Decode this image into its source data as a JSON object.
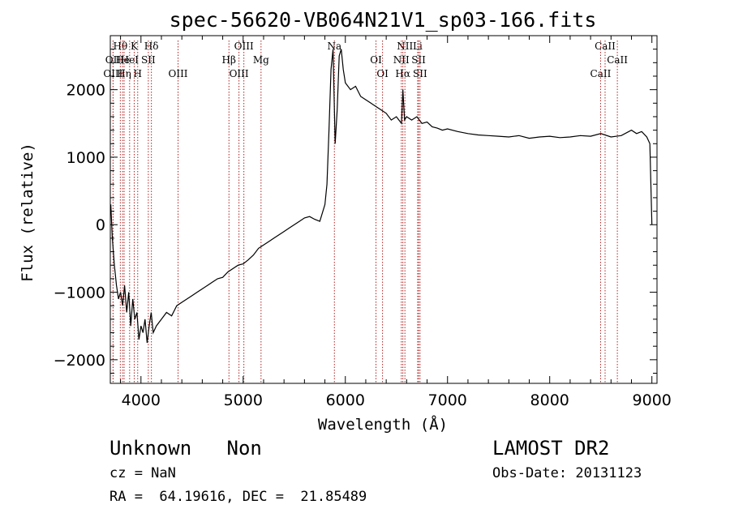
{
  "chart_data": {
    "type": "line",
    "title": "spec-56620-VB064N21V1_sp03-166.fits",
    "xlabel": "Wavelength (Å)",
    "ylabel": "Flux (relative)",
    "xlim": [
      3700,
      9050
    ],
    "ylim": [
      -2350,
      2800
    ],
    "xticks": [
      4000,
      5000,
      6000,
      7000,
      8000,
      9000
    ],
    "yticks": [
      -2000,
      -1000,
      0,
      1000,
      2000
    ],
    "grid": false,
    "line_color": "#000000",
    "marker_color": "#b22222",
    "series": [
      {
        "x": [
          3705,
          3720,
          3740,
          3760,
          3780,
          3800,
          3820,
          3840,
          3860,
          3880,
          3900,
          3920,
          3940,
          3960,
          3980,
          4000,
          4020,
          4040,
          4060,
          4080,
          4100,
          4120,
          4150,
          4200,
          4250,
          4300,
          4350,
          4400,
          4450,
          4500,
          4550,
          4600,
          4650,
          4700,
          4750,
          4800,
          4850,
          4900,
          4950,
          5000,
          5050,
          5100,
          5150,
          5200,
          5250,
          5300,
          5350,
          5400,
          5450,
          5500,
          5550,
          5600,
          5650,
          5700,
          5750,
          5800,
          5820,
          5840,
          5860,
          5880,
          5900,
          5920,
          5940,
          5960,
          5980,
          6000,
          6050,
          6100,
          6150,
          6200,
          6250,
          6300,
          6350,
          6400,
          6450,
          6500,
          6550,
          6563,
          6580,
          6600,
          6650,
          6700,
          6750,
          6800,
          6850,
          6900,
          6950,
          7000,
          7100,
          7200,
          7300,
          7400,
          7500,
          7600,
          7700,
          7800,
          7900,
          8000,
          8100,
          8200,
          8300,
          8400,
          8500,
          8600,
          8700,
          8800,
          8850,
          8900,
          8950,
          8980,
          9000
        ],
        "y": [
          300,
          -200,
          -600,
          -900,
          -1100,
          -1000,
          -1200,
          -900,
          -1300,
          -1000,
          -1500,
          -1100,
          -1400,
          -1300,
          -1700,
          -1500,
          -1600,
          -1400,
          -1750,
          -1500,
          -1300,
          -1600,
          -1500,
          -1400,
          -1300,
          -1350,
          -1200,
          -1150,
          -1100,
          -1050,
          -1000,
          -950,
          -900,
          -850,
          -800,
          -780,
          -700,
          -650,
          -600,
          -580,
          -520,
          -450,
          -350,
          -300,
          -250,
          -200,
          -150,
          -100,
          -50,
          0,
          50,
          100,
          120,
          80,
          50,
          300,
          600,
          1400,
          2300,
          2600,
          1200,
          1700,
          2500,
          2600,
          2300,
          2100,
          2000,
          2050,
          1900,
          1850,
          1800,
          1750,
          1700,
          1650,
          1550,
          1600,
          1500,
          2000,
          1550,
          1600,
          1550,
          1600,
          1500,
          1520,
          1450,
          1430,
          1400,
          1420,
          1380,
          1350,
          1330,
          1320,
          1310,
          1300,
          1320,
          1280,
          1300,
          1310,
          1290,
          1300,
          1320,
          1310,
          1350,
          1300,
          1320,
          1400,
          1350,
          1380,
          1300,
          1200,
          0
        ]
      }
    ],
    "line_markers": [
      {
        "label": "Hθ",
        "wave": 3798,
        "row": 1
      },
      {
        "label": "OII",
        "wave": 3727,
        "row": 2
      },
      {
        "label": "OIII",
        "wave": 3727,
        "row": 3
      },
      {
        "label": "He",
        "wave": 3820,
        "row": 2
      },
      {
        "label": "Hη",
        "wave": 3835,
        "row": 3
      },
      {
        "label": "K",
        "wave": 3934,
        "row": 1
      },
      {
        "label": "HeI",
        "wave": 3889,
        "row": 2
      },
      {
        "label": "H",
        "wave": 3968,
        "row": 3
      },
      {
        "label": "Hδ",
        "wave": 4102,
        "row": 1
      },
      {
        "label": "SII",
        "wave": 4072,
        "row": 2
      },
      {
        "label": "OIII",
        "wave": 4363,
        "row": 3
      },
      {
        "label": "OIII",
        "wave": 5007,
        "row": 1
      },
      {
        "label": "Hβ",
        "wave": 4861,
        "row": 2
      },
      {
        "label": "Mg",
        "wave": 5175,
        "row": 2
      },
      {
        "label": "OIII",
        "wave": 4959,
        "row": 3
      },
      {
        "label": "Na",
        "wave": 5893,
        "row": 1
      },
      {
        "label": "OI",
        "wave": 6300,
        "row": 2
      },
      {
        "label": "OI",
        "wave": 6364,
        "row": 3
      },
      {
        "label": "NII",
        "wave": 6583,
        "row": 1
      },
      {
        "label": "Li",
        "wave": 6708,
        "row": 1
      },
      {
        "label": "NII",
        "wave": 6548,
        "row": 2
      },
      {
        "label": "SII",
        "wave": 6717,
        "row": 2
      },
      {
        "label": "Hα",
        "wave": 6563,
        "row": 3
      },
      {
        "label": "SII",
        "wave": 6731,
        "row": 3
      },
      {
        "label": "CaII",
        "wave": 8542,
        "row": 1
      },
      {
        "label": "CaII",
        "wave": 8662,
        "row": 2
      },
      {
        "label": "CaII",
        "wave": 8498,
        "row": 3
      }
    ]
  },
  "info": {
    "class_label": "Unknown   Non",
    "survey": "LAMOST DR2",
    "cz": "cz = NaN",
    "obs_date": "Obs-Date: 20131123",
    "coords": "RA =  64.19616, DEC =  21.85489"
  }
}
